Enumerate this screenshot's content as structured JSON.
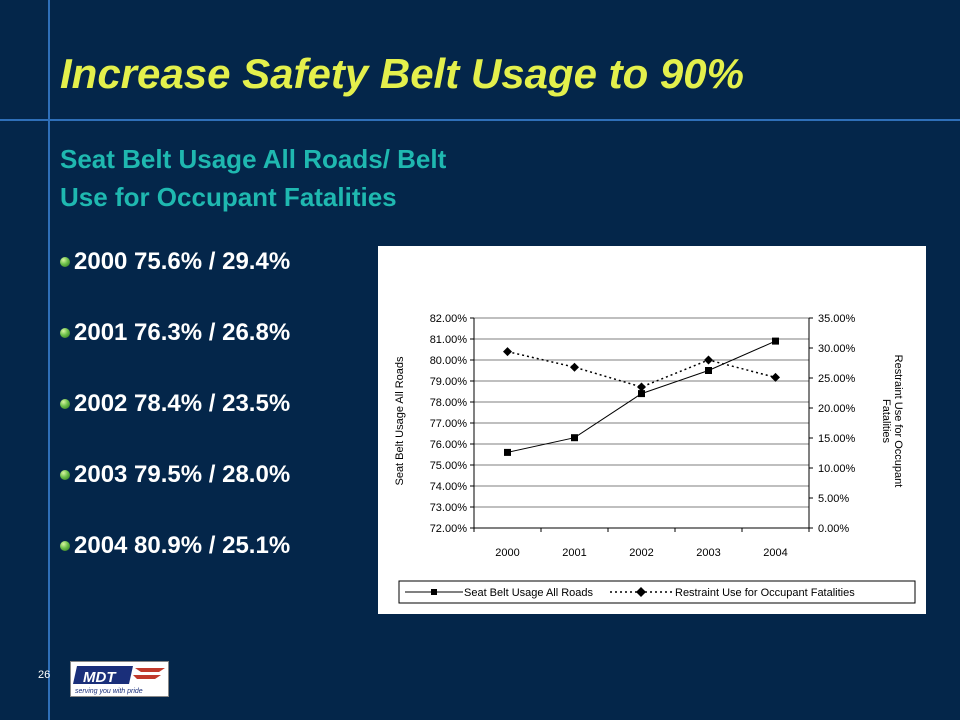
{
  "slide": {
    "title": "Increase Safety Belt Usage to 90%",
    "subtitle_line1": "Seat Belt Usage All Roads/ Belt",
    "subtitle_line2": "Use for Occupant Fatalities",
    "page_number": "26",
    "bullets": [
      "2000  75.6% / 29.4%",
      "2001  76.3% / 26.8%",
      "2002  78.4% / 23.5%",
      "2003  79.5% / 28.0%",
      "2004  80.9% / 25.1%"
    ],
    "logo": {
      "name": "MDT",
      "tagline": "serving you with pride"
    }
  },
  "chart_data": {
    "type": "line",
    "categories": [
      "2000",
      "2001",
      "2002",
      "2003",
      "2004"
    ],
    "series": [
      {
        "name": "Seat Belt Usage All Roads",
        "axis": "left",
        "values": [
          75.6,
          76.3,
          78.4,
          79.5,
          80.9
        ],
        "marker": "square",
        "style": "solid"
      },
      {
        "name": "Restraint Use for Occupant Fatalities",
        "axis": "right",
        "values": [
          29.4,
          26.8,
          23.5,
          28.0,
          25.1
        ],
        "marker": "diamond",
        "style": "dotted"
      }
    ],
    "ylabel": "Seat Belt Usage All Roads",
    "y2label_line1": "Restraint Use for Occupant",
    "y2label_line2": "Fatalities",
    "ylim": [
      72,
      82
    ],
    "y2lim": [
      0,
      35
    ],
    "yticks": [
      "72.00%",
      "73.00%",
      "74.00%",
      "75.00%",
      "76.00%",
      "77.00%",
      "78.00%",
      "79.00%",
      "80.00%",
      "81.00%",
      "82.00%"
    ],
    "y2ticks": [
      "0.00%",
      "5.00%",
      "10.00%",
      "15.00%",
      "20.00%",
      "25.00%",
      "30.00%",
      "35.00%"
    ],
    "legend": "bottom",
    "grid": true,
    "colors": {
      "line": "#000000",
      "background": "#ffffff"
    }
  }
}
